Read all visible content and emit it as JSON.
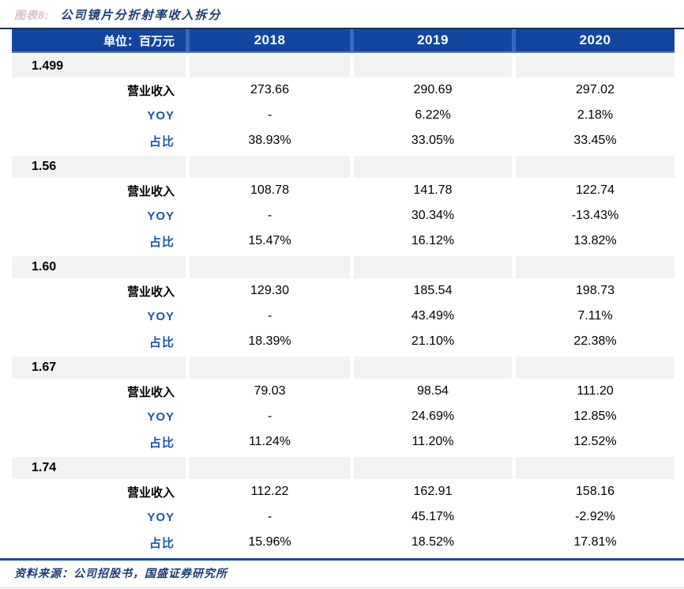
{
  "title": {
    "prefix": "图表8:",
    "text": "公司镜片分折射率收入拆分"
  },
  "table": {
    "unit_label": "单位：百万元",
    "years": [
      "2018",
      "2019",
      "2020"
    ],
    "row_labels": {
      "revenue": "营业收入",
      "yoy": "YOY",
      "share": "占比"
    },
    "sections": [
      {
        "name": "1.499",
        "revenue": [
          "273.66",
          "290.69",
          "297.02"
        ],
        "yoy": [
          "-",
          "6.22%",
          "2.18%"
        ],
        "share": [
          "38.93%",
          "33.05%",
          "33.45%"
        ]
      },
      {
        "name": "1.56",
        "revenue": [
          "108.78",
          "141.78",
          "122.74"
        ],
        "yoy": [
          "-",
          "30.34%",
          "-13.43%"
        ],
        "share": [
          "15.47%",
          "16.12%",
          "13.82%"
        ]
      },
      {
        "name": "1.60",
        "revenue": [
          "129.30",
          "185.54",
          "198.73"
        ],
        "yoy": [
          "-",
          "43.49%",
          "7.11%"
        ],
        "share": [
          "18.39%",
          "21.10%",
          "22.38%"
        ]
      },
      {
        "name": "1.67",
        "revenue": [
          "79.03",
          "98.54",
          "111.20"
        ],
        "yoy": [
          "-",
          "24.69%",
          "12.85%"
        ],
        "share": [
          "11.24%",
          "11.20%",
          "12.52%"
        ]
      },
      {
        "name": "1.74",
        "revenue": [
          "112.22",
          "162.91",
          "158.16"
        ],
        "yoy": [
          "-",
          "45.17%",
          "-2.92%"
        ],
        "share": [
          "15.96%",
          "18.52%",
          "17.81%"
        ]
      }
    ]
  },
  "footer": {
    "source": "资料来源：公司招股书，国盛证券研究所"
  },
  "colors": {
    "header_bg": "#1246a0",
    "header_gap": "#3a69be",
    "header_underline": "#4a7cc7",
    "band_bg": "#f2f2f2",
    "label_blue": "#1a56a8",
    "title_navy": "#1b3c78",
    "prefix_faded": "#dcc3c3",
    "rule_navy": "#16365c",
    "bottom_rule": "#1b4a9e"
  }
}
